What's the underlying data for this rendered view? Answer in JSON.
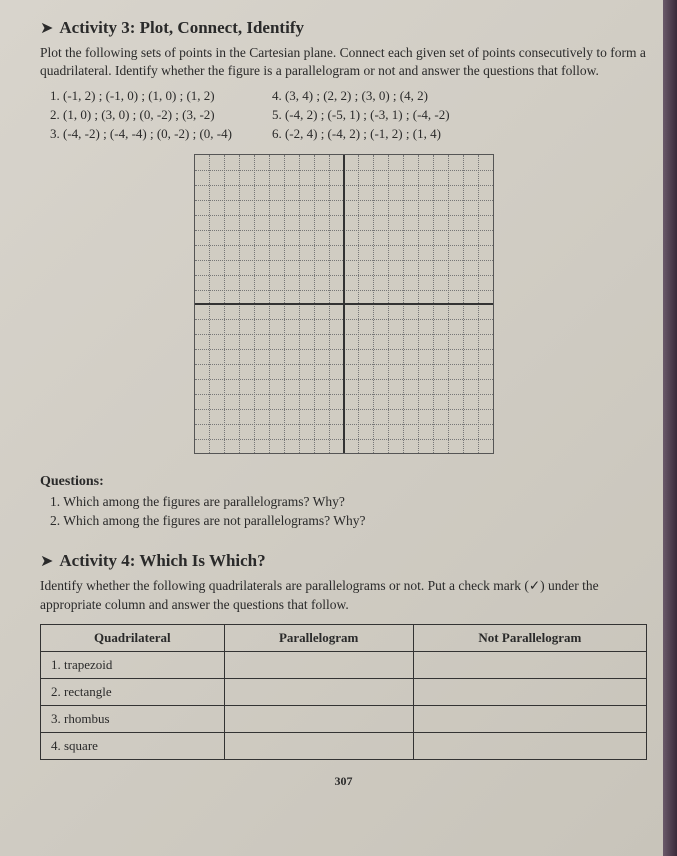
{
  "activity3": {
    "arrow": "➤",
    "title": "Activity 3: Plot, Connect, Identify",
    "instructions": "Plot the following sets of points in the Cartesian plane. Connect each given set of points consecutively to form a quadrilateral. Identify whether the figure is a parallelogram or not and answer the questions that follow.",
    "points_left": [
      "1.  (-1, 2) ; (-1, 0) ; (1, 0) ; (1, 2)",
      "2.  (1, 0) ; (3, 0) ; (0, -2) ; (3, -2)",
      "3.  (-4, -2) ; (-4, -4) ; (0, -2) ; (0, -4)"
    ],
    "points_right": [
      "4.  (3, 4) ; (2, 2) ; (3, 0) ; (4, 2)",
      "5.  (-4, 2) ; (-5, 1) ; (-3, 1) ; (-4, -2)",
      "6.  (-2, 4) ; (-4, 2) ; (-1, 2) ; (1, 4)"
    ]
  },
  "grid": {
    "divisions": 20
  },
  "questions": {
    "header": "Questions:",
    "items": [
      "1.  Which among the figures are parallelograms? Why?",
      "2.  Which among the figures are not parallelograms? Why?"
    ]
  },
  "activity4": {
    "arrow": "➤",
    "title": "Activity 4: Which Is Which?",
    "instructions": "Identify whether the following quadrilaterals are parallelograms or not. Put a check mark (✓) under the appropriate column and answer the questions that follow.",
    "columns": [
      "Quadrilateral",
      "Parallelogram",
      "Not Parallelogram"
    ],
    "rows": [
      [
        "1.  trapezoid",
        "",
        ""
      ],
      [
        "2.  rectangle",
        "",
        ""
      ],
      [
        "3.  rhombus",
        "",
        ""
      ],
      [
        "4.  square",
        "",
        ""
      ]
    ]
  },
  "page_number": "307"
}
